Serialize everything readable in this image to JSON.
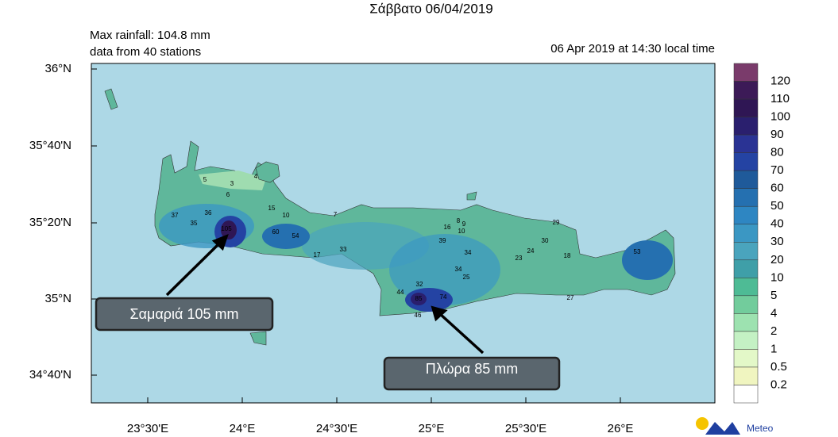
{
  "title": "Σάββατο 06/04/2019",
  "info": {
    "max_rainfall": "Max rainfall: 104.8 mm",
    "stations": "data from 40 stations",
    "time": "06 Apr 2019 at 14:30 local time"
  },
  "lat_labels": [
    "36°N",
    "35°40'N",
    "35°20'N",
    "35°N",
    "34°40'N"
  ],
  "lon_labels": [
    "23°30'E",
    "24°E",
    "24°30'E",
    "25°E",
    "25°30'E",
    "26°E"
  ],
  "colorbar": {
    "levels": [
      120,
      110,
      100,
      90,
      80,
      70,
      60,
      50,
      40,
      30,
      20,
      10,
      5,
      4,
      2,
      1,
      0.5,
      0.2
    ],
    "colors": [
      "#7a3b6b",
      "#3c1a57",
      "#2f1654",
      "#2a1f6e",
      "#2a3394",
      "#2443a3",
      "#1f5a9a",
      "#2570b0",
      "#2e86c2",
      "#3b97c3",
      "#4aa4bd",
      "#3f9fa8",
      "#4ebb95",
      "#72cc9c",
      "#9de2b0",
      "#c4f1c4",
      "#e3f8c8",
      "#f0f5c0",
      "#ffffff"
    ]
  },
  "stations": [
    "5",
    "3",
    "4",
    "6",
    "15",
    "10",
    "36",
    "37",
    "35",
    "105",
    "60",
    "54",
    "17",
    "33",
    "7",
    "39",
    "16",
    "8",
    "9",
    "10",
    "34",
    "34",
    "25",
    "32",
    "44",
    "85",
    "74",
    "46",
    "23",
    "24",
    "30",
    "29",
    "18",
    "53",
    "27"
  ],
  "callouts": [
    "Σαμαριά 105 mm",
    "Πλώρα 85 mm"
  ],
  "logo": "Meteo"
}
